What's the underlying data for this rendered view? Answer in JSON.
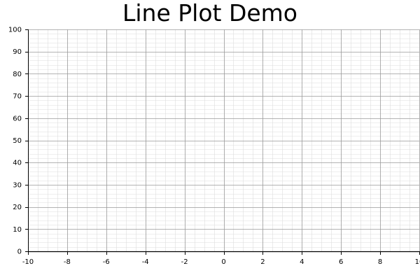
{
  "chart_data": {
    "type": "line",
    "title": "Line Plot Demo",
    "xlabel": "",
    "ylabel": "",
    "xlim": [
      -10,
      10
    ],
    "ylim": [
      0,
      100
    ],
    "x_ticks": [
      -10,
      -8,
      -6,
      -4,
      -2,
      0,
      2,
      4,
      6,
      8,
      10
    ],
    "x_tick_labels": [
      "-10",
      "-8",
      "-6",
      "-4",
      "-2",
      "0",
      "2",
      "4",
      "6",
      "8",
      "10"
    ],
    "y_ticks": [
      0,
      10,
      20,
      30,
      40,
      50,
      60,
      70,
      80,
      90,
      100
    ],
    "y_tick_labels": [
      "0",
      "10",
      "20",
      "30",
      "40",
      "50",
      "60",
      "70",
      "80",
      "90",
      "100"
    ],
    "grid": "major and minor",
    "series": [],
    "colors": {
      "axis": "#000000",
      "major_grid": "#9a9a9a",
      "minor_grid": "#dedede"
    }
  }
}
